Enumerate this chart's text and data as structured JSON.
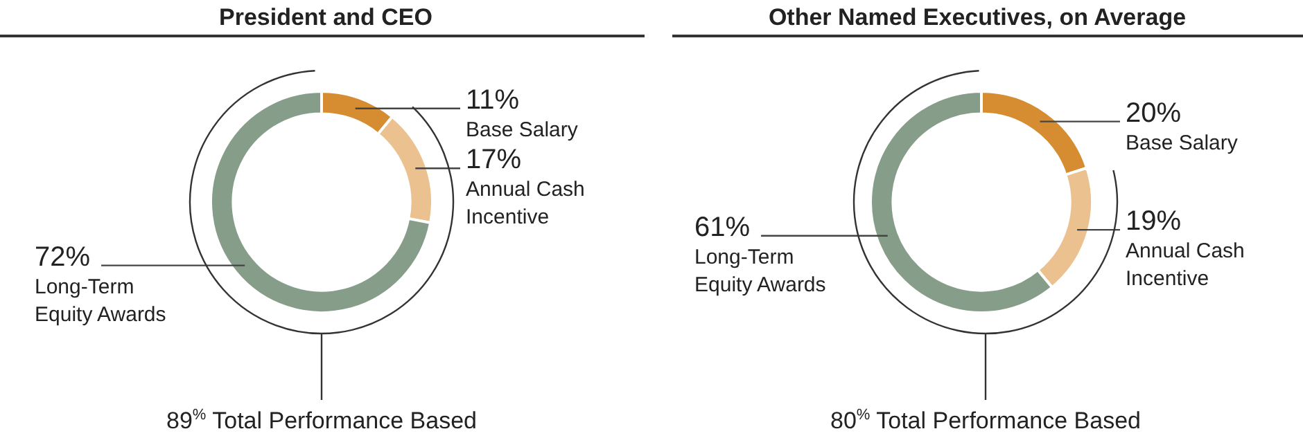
{
  "chart_data": [
    {
      "type": "donut",
      "title": "President and CEO",
      "categories": [
        "Base Salary",
        "Annual Cash Incentive",
        "Long-Term Equity Awards"
      ],
      "values": [
        11,
        17,
        72
      ],
      "colors": [
        "#d68c30",
        "#ebc18f",
        "#869d89"
      ],
      "value_labels": [
        "11%",
        "17%",
        "72%"
      ],
      "annotations": [
        "89$^{%}$ Total Performance Based"
      ]
    },
    {
      "type": "donut",
      "title": "Other Named Executives, on Average",
      "categories": [
        "Base Salary",
        "Annual Cash Incentive",
        "Long-Term Equity Awards"
      ],
      "values": [
        20,
        19,
        61
      ],
      "colors": [
        "#d68c30",
        "#ebc18f",
        "#869d89"
      ],
      "value_labels": [
        "20%",
        "19%",
        "61%"
      ],
      "annotations": [
        "80$^{%}$ Total Performance Based"
      ]
    }
  ]
}
